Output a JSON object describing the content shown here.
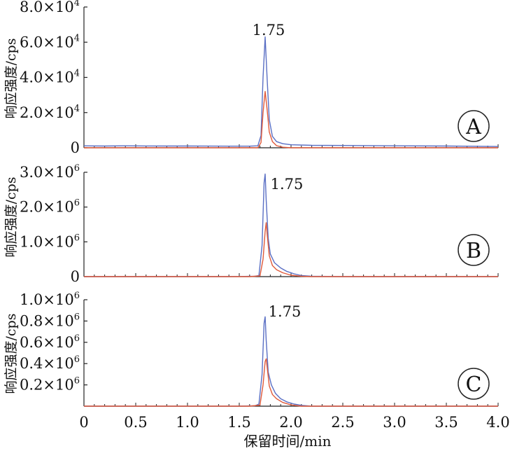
{
  "chart_data": [
    {
      "type": "line",
      "panel": "A",
      "panel_label": "A",
      "ylabel": "响应强度/cps",
      "xlim": [
        0,
        4.0
      ],
      "ylim": [
        0,
        80000
      ],
      "ytick_values": [
        0,
        20000,
        40000,
        60000,
        80000
      ],
      "ytick_labels": [
        "0",
        "2.0×10",
        "4.0×10",
        "6.0×10",
        "8.0×10"
      ],
      "ytick_exponents": [
        "",
        "4",
        "4",
        "4",
        "4"
      ],
      "peak_label": "1.75",
      "peak_x": 1.75,
      "series": [
        {
          "color": "#5a6fc4",
          "points": [
            [
              0,
              1100
            ],
            [
              0.2,
              1000
            ],
            [
              0.4,
              1100
            ],
            [
              0.6,
              1050
            ],
            [
              0.8,
              1000
            ],
            [
              1.0,
              1000
            ],
            [
              1.2,
              950
            ],
            [
              1.4,
              900
            ],
            [
              1.6,
              900
            ],
            [
              1.68,
              1100
            ],
            [
              1.71,
              7000
            ],
            [
              1.73,
              40000
            ],
            [
              1.75,
              63000
            ],
            [
              1.77,
              38000
            ],
            [
              1.79,
              16000
            ],
            [
              1.82,
              6500
            ],
            [
              1.86,
              3500
            ],
            [
              1.92,
              2300
            ],
            [
              2.0,
              1700
            ],
            [
              2.2,
              1400
            ],
            [
              2.5,
              1300
            ],
            [
              3.0,
              1100
            ],
            [
              3.5,
              1000
            ],
            [
              4.0,
              700
            ]
          ]
        },
        {
          "color": "#e05a3a",
          "points": [
            [
              0,
              0
            ],
            [
              1.0,
              0
            ],
            [
              1.5,
              0
            ],
            [
              1.68,
              0
            ],
            [
              1.71,
              3000
            ],
            [
              1.73,
              20000
            ],
            [
              1.75,
              32000
            ],
            [
              1.77,
              21000
            ],
            [
              1.79,
              9000
            ],
            [
              1.82,
              3500
            ],
            [
              1.86,
              1200
            ],
            [
              1.92,
              300
            ],
            [
              2.0,
              0
            ],
            [
              4.0,
              0
            ]
          ]
        }
      ]
    },
    {
      "type": "line",
      "panel": "B",
      "panel_label": "B",
      "ylabel": "响应强度/cps",
      "xlim": [
        0,
        4.0
      ],
      "ylim": [
        0,
        3000000
      ],
      "ytick_values": [
        0,
        1000000,
        2000000,
        3000000
      ],
      "ytick_labels": [
        "0",
        "1.0×10",
        "2.0×10",
        "3.0×10"
      ],
      "ytick_exponents": [
        "",
        "6",
        "6",
        "6"
      ],
      "peak_label": "1.75",
      "peak_x": 1.75,
      "series": [
        {
          "color": "#5a6fc4",
          "points": [
            [
              0,
              0
            ],
            [
              1.0,
              0
            ],
            [
              1.4,
              0
            ],
            [
              1.5,
              5000
            ],
            [
              1.65,
              10000
            ],
            [
              1.69,
              30000
            ],
            [
              1.72,
              900000
            ],
            [
              1.74,
              2700000
            ],
            [
              1.75,
              2950000
            ],
            [
              1.76,
              2200000
            ],
            [
              1.78,
              1100000
            ],
            [
              1.8,
              650000
            ],
            [
              1.84,
              400000
            ],
            [
              1.9,
              250000
            ],
            [
              1.96,
              150000
            ],
            [
              2.03,
              80000
            ],
            [
              2.1,
              30000
            ],
            [
              2.2,
              10000
            ],
            [
              2.5,
              0
            ],
            [
              4.0,
              0
            ]
          ]
        },
        {
          "color": "#e05a3a",
          "points": [
            [
              0,
              0
            ],
            [
              1.0,
              0
            ],
            [
              1.6,
              0
            ],
            [
              1.7,
              20000
            ],
            [
              1.73,
              500000
            ],
            [
              1.75,
              1300000
            ],
            [
              1.76,
              1550000
            ],
            [
              1.77,
              1200000
            ],
            [
              1.79,
              600000
            ],
            [
              1.82,
              320000
            ],
            [
              1.86,
              200000
            ],
            [
              1.92,
              110000
            ],
            [
              2.0,
              40000
            ],
            [
              2.1,
              10000
            ],
            [
              2.2,
              0
            ],
            [
              4.0,
              0
            ]
          ]
        }
      ]
    },
    {
      "type": "line",
      "panel": "C",
      "panel_label": "C",
      "ylabel": "响应强度/cps",
      "xlabel": "保留时间/min",
      "xlim": [
        0,
        4.0
      ],
      "xtick_values": [
        0,
        0.5,
        1.0,
        1.5,
        2.0,
        2.5,
        3.0,
        3.5,
        4.0
      ],
      "xtick_labels": [
        "0",
        "0.5",
        "1.0",
        "1.5",
        "2.0",
        "2.5",
        "3.0",
        "3.5",
        "4.0"
      ],
      "ylim": [
        0,
        1000000
      ],
      "ytick_values": [
        200000,
        400000,
        600000,
        800000,
        1000000
      ],
      "ytick_labels": [
        "0.2×10",
        "0.4×10",
        "0.6×10",
        "0.8×10",
        "1.0×10"
      ],
      "ytick_exponents": [
        "6",
        "6",
        "6",
        "6",
        "6"
      ],
      "peak_label": "1.75",
      "peak_x": 1.75,
      "series": [
        {
          "color": "#5a6fc4",
          "points": [
            [
              0,
              0
            ],
            [
              1.0,
              0
            ],
            [
              1.5,
              0
            ],
            [
              1.65,
              3000
            ],
            [
              1.69,
              20000
            ],
            [
              1.72,
              300000
            ],
            [
              1.74,
              780000
            ],
            [
              1.75,
              840000
            ],
            [
              1.76,
              620000
            ],
            [
              1.78,
              320000
            ],
            [
              1.81,
              200000
            ],
            [
              1.85,
              120000
            ],
            [
              1.9,
              70000
            ],
            [
              1.96,
              40000
            ],
            [
              2.03,
              20000
            ],
            [
              2.1,
              8000
            ],
            [
              2.2,
              0
            ],
            [
              4.0,
              0
            ]
          ]
        },
        {
          "color": "#e05a3a",
          "points": [
            [
              0,
              0
            ],
            [
              1.0,
              0
            ],
            [
              1.6,
              0
            ],
            [
              1.7,
              10000
            ],
            [
              1.73,
              200000
            ],
            [
              1.75,
              420000
            ],
            [
              1.76,
              445000
            ],
            [
              1.77,
              360000
            ],
            [
              1.79,
              190000
            ],
            [
              1.82,
              110000
            ],
            [
              1.86,
              70000
            ],
            [
              1.92,
              35000
            ],
            [
              2.0,
              12000
            ],
            [
              2.1,
              0
            ],
            [
              4.0,
              0
            ]
          ]
        }
      ]
    }
  ]
}
